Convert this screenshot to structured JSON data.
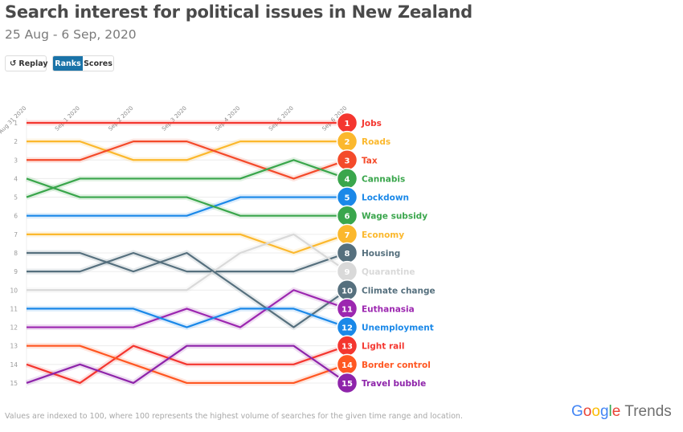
{
  "header": {
    "title": "Search interest for political issues in New Zealand",
    "subtitle": "25 Aug - 6 Sep, 2020"
  },
  "controls": {
    "replay_label": "Replay",
    "replay_icon": "replay-icon",
    "ranks_label": "Ranks",
    "scores_label": "Scores",
    "active_mode": "Ranks",
    "active_color": "#1a73a8"
  },
  "footer": {
    "note": "Values are indexed to 100, where 100 represents the highest volume of searches for the given time range and location.",
    "logo_google": [
      "G",
      "o",
      "o",
      "g",
      "l",
      "e"
    ],
    "logo_trends": "Trends"
  },
  "chart_data": {
    "type": "line",
    "subtype": "bump-rank",
    "title": "Search interest for political issues in New Zealand",
    "subtitle": "25 Aug - 6 Sep, 2020",
    "x": [
      "Aug 31 2020",
      "Sep 1 2020",
      "Sep 2 2020",
      "Sep 3 2020",
      "Sep 4 2020",
      "Sep 5 2020",
      "Sep 6 2020"
    ],
    "y_ticks": [
      1,
      2,
      3,
      4,
      5,
      6,
      7,
      8,
      9,
      10,
      11,
      12,
      13,
      14,
      15
    ],
    "ylim": [
      1,
      15
    ],
    "y_inverted": true,
    "grid": true,
    "legend": "right-end-labels",
    "series": [
      {
        "name": "Jobs",
        "color": "#f4362f",
        "final_rank": 1,
        "values": [
          1,
          1,
          1,
          1,
          1,
          1,
          1
        ]
      },
      {
        "name": "Roads",
        "color": "#fbb82d",
        "final_rank": 2,
        "values": [
          2,
          2,
          3,
          3,
          2,
          2,
          2
        ]
      },
      {
        "name": "Tax",
        "color": "#f44a2a",
        "final_rank": 3,
        "values": [
          3,
          3,
          2,
          2,
          3,
          4,
          3
        ]
      },
      {
        "name": "Cannabis",
        "color": "#3aa64c",
        "final_rank": 4,
        "values": [
          5,
          4,
          4,
          4,
          4,
          3,
          4
        ]
      },
      {
        "name": "Lockdown",
        "color": "#1a88e8",
        "final_rank": 5,
        "values": [
          6,
          6,
          6,
          6,
          5,
          5,
          5
        ]
      },
      {
        "name": "Wage subsidy",
        "color": "#3aa64c",
        "final_rank": 6,
        "values": [
          4,
          5,
          5,
          5,
          6,
          6,
          6
        ]
      },
      {
        "name": "Economy",
        "color": "#fbb82d",
        "final_rank": 7,
        "values": [
          7,
          7,
          7,
          7,
          7,
          8,
          7
        ]
      },
      {
        "name": "Housing",
        "color": "#56707e",
        "final_rank": 8,
        "values": [
          9,
          9,
          8,
          9,
          9,
          9,
          8
        ]
      },
      {
        "name": "Quarantine",
        "color": "#d9d9d9",
        "final_rank": 9,
        "values": [
          10,
          10,
          10,
          10,
          8,
          7,
          9
        ]
      },
      {
        "name": "Climate change",
        "color": "#56707e",
        "final_rank": 10,
        "values": [
          8,
          8,
          9,
          8,
          10,
          12,
          10
        ]
      },
      {
        "name": "Euthanasia",
        "color": "#9c27b0",
        "final_rank": 11,
        "values": [
          12,
          12,
          12,
          11,
          12,
          10,
          11
        ]
      },
      {
        "name": "Unemployment",
        "color": "#1a88e8",
        "final_rank": 12,
        "values": [
          11,
          11,
          11,
          12,
          11,
          11,
          12
        ]
      },
      {
        "name": "Light rail",
        "color": "#f4362f",
        "final_rank": 13,
        "values": [
          14,
          15,
          13,
          14,
          14,
          14,
          13
        ]
      },
      {
        "name": "Border control",
        "color": "#ff5722",
        "final_rank": 14,
        "values": [
          13,
          13,
          14,
          15,
          15,
          15,
          14
        ]
      },
      {
        "name": "Travel bubble",
        "color": "#8e24aa",
        "final_rank": 15,
        "values": [
          15,
          14,
          15,
          13,
          13,
          13,
          15
        ]
      }
    ]
  }
}
